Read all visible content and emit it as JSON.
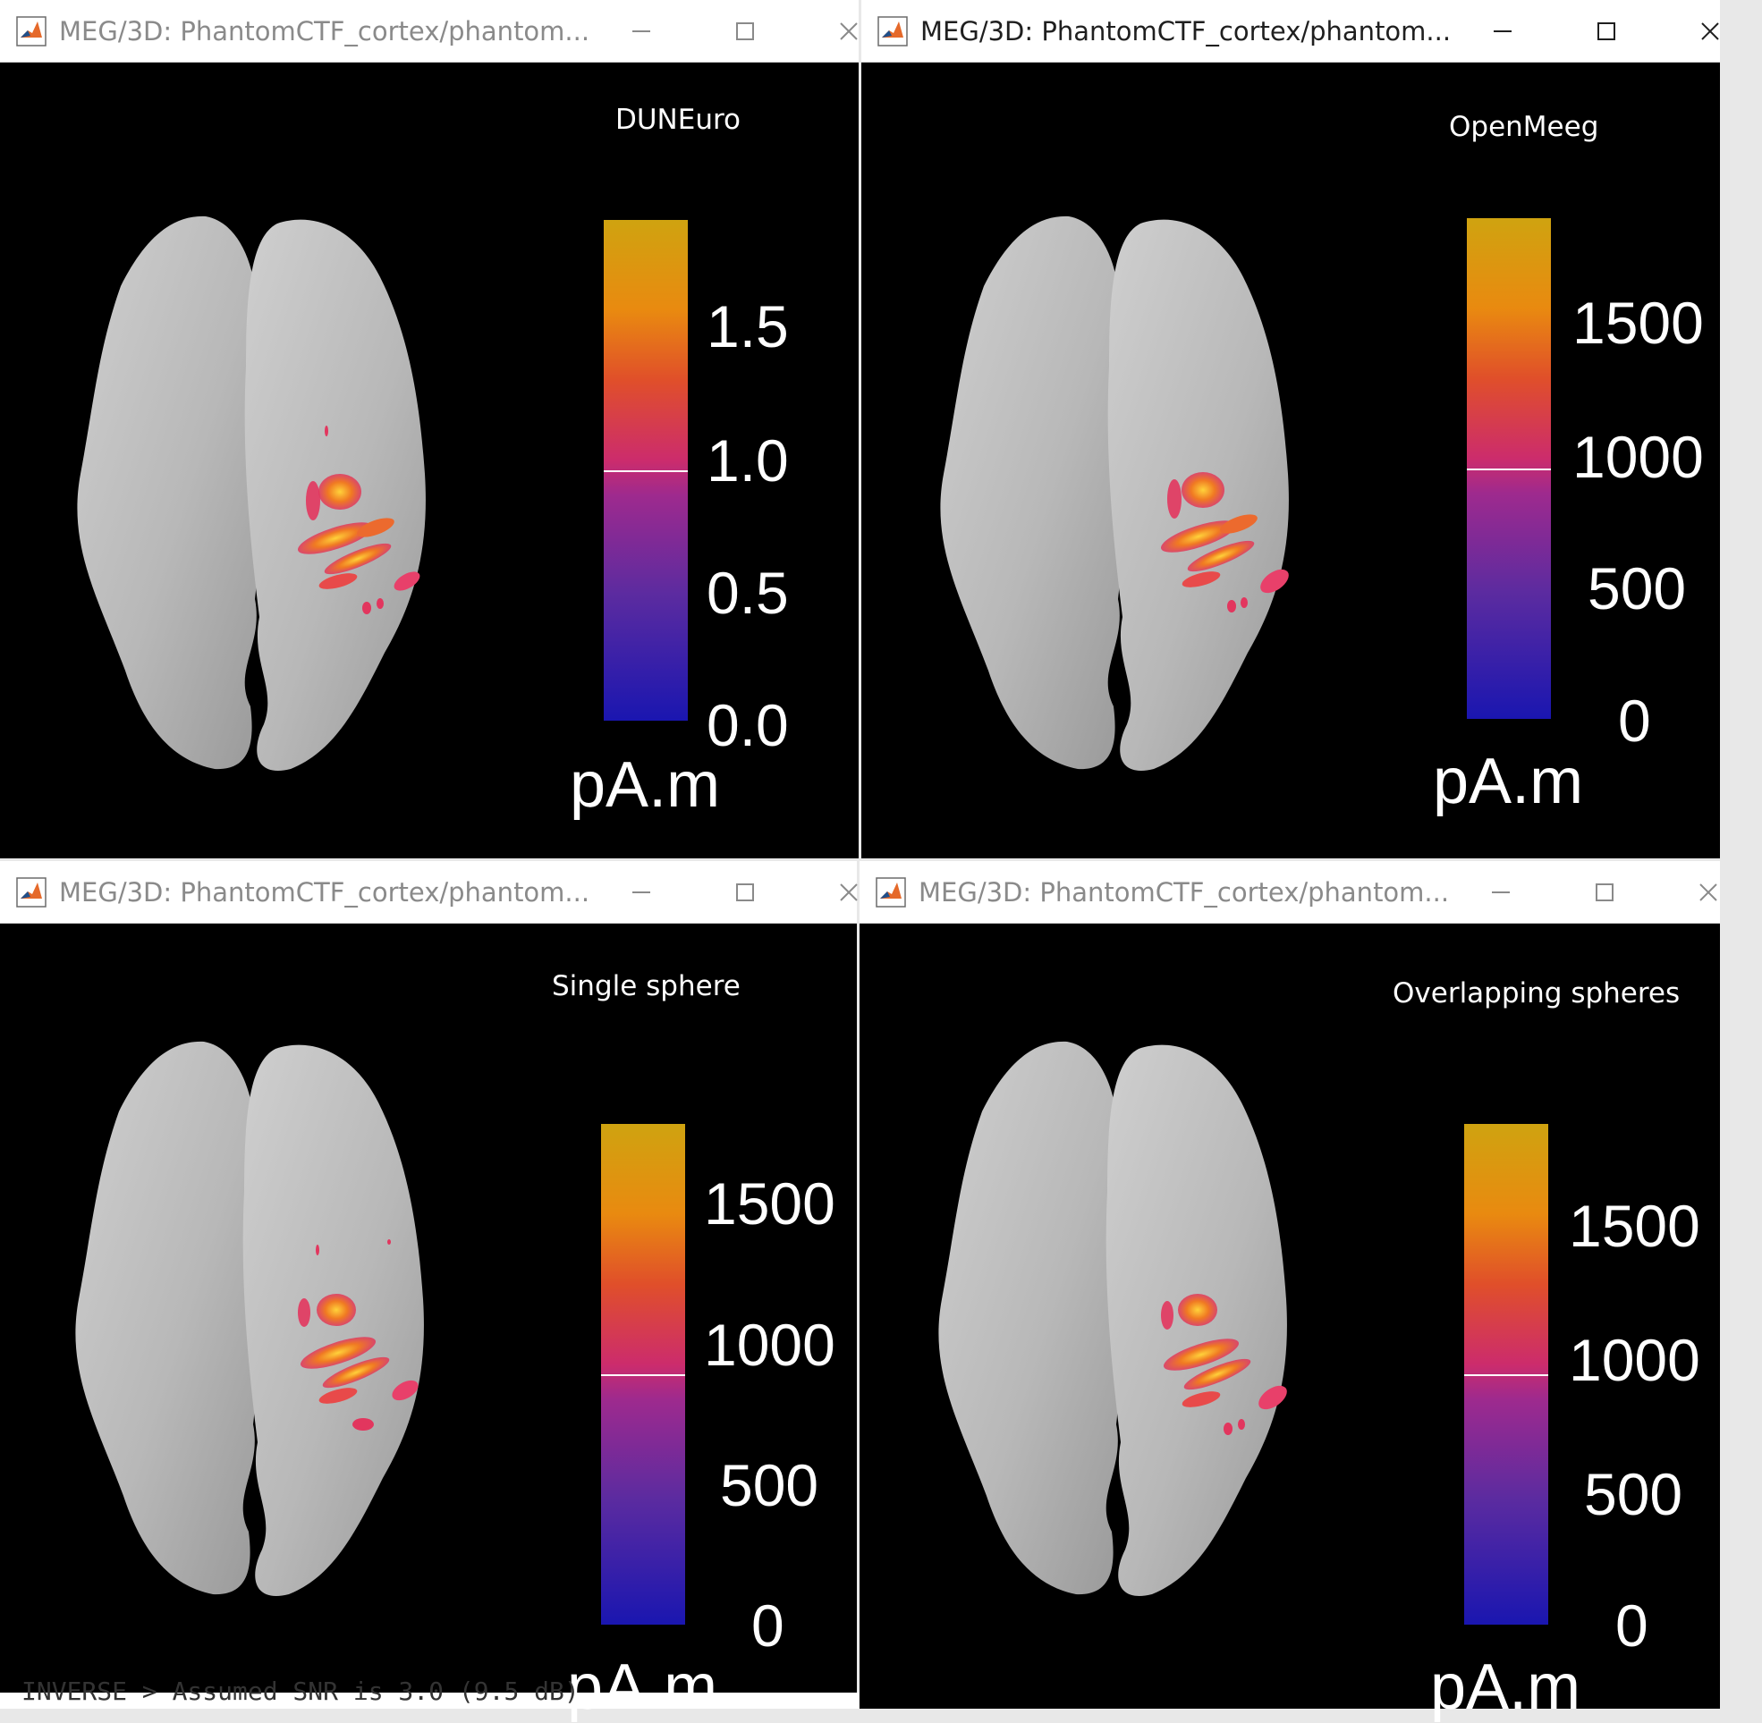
{
  "windows": [
    {
      "title": "MEG/3D: PhantomCTF_cortex/phantom...",
      "active": false,
      "label": "DUNEuro",
      "colorbar": {
        "ticks": [
          "1.5",
          "1.0",
          "0.5",
          "0.0"
        ],
        "unit": "pA.m"
      }
    },
    {
      "title": "MEG/3D: PhantomCTF_cortex/phantom...",
      "active": true,
      "label": "OpenMeeg",
      "colorbar": {
        "ticks": [
          "1500",
          "1000",
          "500",
          "0"
        ],
        "unit": "pA.m"
      }
    },
    {
      "title": "MEG/3D: PhantomCTF_cortex/phantom...",
      "active": false,
      "label": "Single sphere",
      "colorbar": {
        "ticks": [
          "1500",
          "1000",
          "500",
          "0"
        ],
        "unit": "pA.m"
      }
    },
    {
      "title": "MEG/3D: PhantomCTF_cortex/phantom...",
      "active": false,
      "label": "Overlapping spheres",
      "colorbar": {
        "ticks": [
          "1500",
          "1000",
          "500",
          "0"
        ],
        "unit": "pA.m"
      }
    }
  ],
  "icons": {
    "app": "matlab-logo-icon",
    "minimize": "minimize-icon",
    "maximize": "maximize-icon",
    "close": "close-icon"
  },
  "colors": {
    "titlebar": "#ffffff",
    "canvas": "#000000",
    "cortex": "#b9b9b9",
    "colormap_low": "#1a16b0",
    "colormap_mid": "#cc2c6c",
    "colormap_high": "#cfa310"
  },
  "console_fragment": "INVERSE > Assumed SNR is 3.0 (9.5 dB)"
}
